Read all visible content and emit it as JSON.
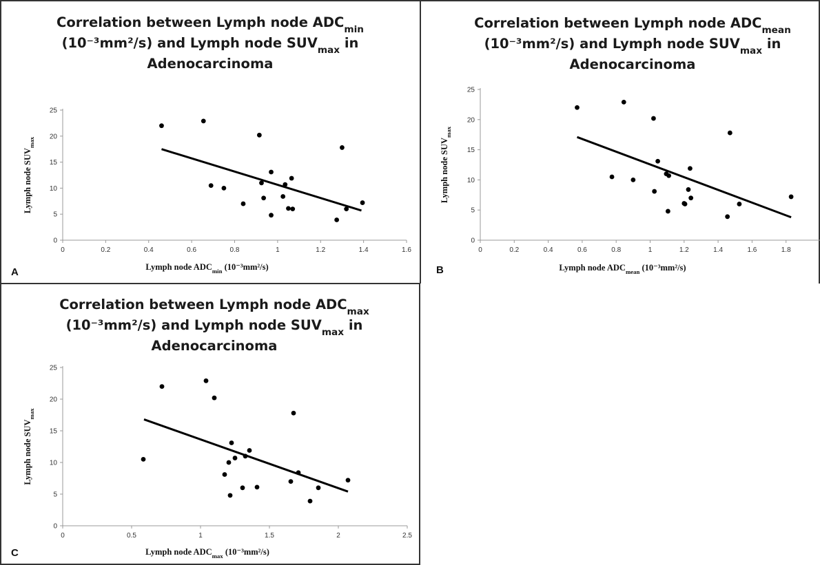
{
  "chart_data": [
    {
      "panel": "A",
      "type": "scatter",
      "title": {
        "line1": {
          "text": "Correlation between Lymph node ADC",
          "sub": "min"
        },
        "line2": {
          "pre": "(10⁻³mm²/s) and Lymph node SUV",
          "sub": "max",
          "post": " in"
        },
        "line3": "Adenocarcinoma"
      },
      "xlabel": {
        "text": "Lymph node ADC",
        "sub": "min",
        "post": " (10⁻³mm²/s)"
      },
      "ylabel": {
        "text": "Lymph node SUV",
        "sub": "max"
      },
      "xlim": [
        0,
        1.6
      ],
      "ylim": [
        0,
        25
      ],
      "xticks": [
        "0",
        "0.2",
        "0.4",
        "0.6",
        "0.8",
        "1",
        "1.2",
        "1.4",
        "1.6"
      ],
      "yticks": [
        "0",
        "5",
        "10",
        "15",
        "20",
        "25"
      ],
      "points": [
        {
          "x": 0.46,
          "y": 22.0
        },
        {
          "x": 0.655,
          "y": 22.9
        },
        {
          "x": 0.69,
          "y": 10.5
        },
        {
          "x": 0.75,
          "y": 10.0
        },
        {
          "x": 0.84,
          "y": 7.0
        },
        {
          "x": 0.915,
          "y": 20.2
        },
        {
          "x": 0.925,
          "y": 11.0
        },
        {
          "x": 0.935,
          "y": 8.1
        },
        {
          "x": 0.97,
          "y": 13.1
        },
        {
          "x": 0.97,
          "y": 4.8
        },
        {
          "x": 1.025,
          "y": 8.4
        },
        {
          "x": 1.035,
          "y": 10.7
        },
        {
          "x": 1.05,
          "y": 6.1
        },
        {
          "x": 1.065,
          "y": 11.9
        },
        {
          "x": 1.07,
          "y": 6.0
        },
        {
          "x": 1.275,
          "y": 3.9
        },
        {
          "x": 1.3,
          "y": 17.8
        },
        {
          "x": 1.32,
          "y": 6.0
        },
        {
          "x": 1.395,
          "y": 7.2
        }
      ],
      "trendline": {
        "x": [
          0.46,
          1.39
        ],
        "y": [
          17.5,
          5.7
        ]
      }
    },
    {
      "panel": "B",
      "type": "scatter",
      "title": {
        "line1": {
          "text": "Correlation between Lymph node ADC",
          "sub": "mean"
        },
        "line2": {
          "pre": "(10⁻³mm²/s) and Lymph node SUV",
          "sub": "max",
          "post": " in"
        },
        "line3": "Adenocarcinoma"
      },
      "xlabel": {
        "text": "Lymph node ADC",
        "sub": "mean",
        "post": " (10⁻³mm²/s)"
      },
      "ylabel": {
        "text": "Lymph node SUV",
        "sub": "max"
      },
      "xlim": [
        0,
        2
      ],
      "ylim": [
        0,
        25
      ],
      "xticks": [
        "0",
        "0.2",
        "0.4",
        "0.6",
        "0.8",
        "1",
        "1.2",
        "1.4",
        "1.6",
        "1.8"
      ],
      "yticks": [
        "0",
        "5",
        "10",
        "15",
        "20",
        "25"
      ],
      "points": [
        {
          "x": 0.57,
          "y": 22.0
        },
        {
          "x": 0.775,
          "y": 10.5
        },
        {
          "x": 0.845,
          "y": 22.9
        },
        {
          "x": 0.9,
          "y": 10.0
        },
        {
          "x": 1.02,
          "y": 20.2
        },
        {
          "x": 1.025,
          "y": 8.1
        },
        {
          "x": 1.045,
          "y": 13.1
        },
        {
          "x": 1.095,
          "y": 11.0
        },
        {
          "x": 1.105,
          "y": 4.8
        },
        {
          "x": 1.11,
          "y": 10.7
        },
        {
          "x": 1.2,
          "y": 6.1
        },
        {
          "x": 1.205,
          "y": 6.0
        },
        {
          "x": 1.225,
          "y": 8.4
        },
        {
          "x": 1.235,
          "y": 11.9
        },
        {
          "x": 1.24,
          "y": 7.0
        },
        {
          "x": 1.455,
          "y": 3.9
        },
        {
          "x": 1.47,
          "y": 17.8
        },
        {
          "x": 1.525,
          "y": 6.0
        },
        {
          "x": 1.83,
          "y": 7.2
        }
      ],
      "trendline": {
        "x": [
          0.57,
          1.83
        ],
        "y": [
          17.1,
          3.8
        ]
      }
    },
    {
      "panel": "C",
      "type": "scatter",
      "title": {
        "line1": {
          "text": "Correlation between Lymph node ADC",
          "sub": "max"
        },
        "line2": {
          "pre": "(10⁻³mm²/s) and Lymph node SUV",
          "sub": "max",
          "post": " in"
        },
        "line3": "Adenocarcinoma"
      },
      "xlabel": {
        "text": "Lymph node ADC",
        "sub": "max",
        "post": " (10⁻³mm²/s)"
      },
      "ylabel": {
        "text": "Lymph node SUV",
        "sub": "max"
      },
      "xlim": [
        0,
        2.5
      ],
      "ylim": [
        0,
        25
      ],
      "xticks": [
        "0",
        "0.5",
        "1",
        "1.5",
        "2",
        "2.5"
      ],
      "yticks": [
        "0",
        "5",
        "10",
        "15",
        "20",
        "25"
      ],
      "points": [
        {
          "x": 0.585,
          "y": 10.5
        },
        {
          "x": 0.72,
          "y": 22.0
        },
        {
          "x": 1.04,
          "y": 22.9
        },
        {
          "x": 1.1,
          "y": 20.2
        },
        {
          "x": 1.175,
          "y": 8.1
        },
        {
          "x": 1.205,
          "y": 10.0
        },
        {
          "x": 1.215,
          "y": 4.8
        },
        {
          "x": 1.225,
          "y": 13.1
        },
        {
          "x": 1.25,
          "y": 10.7
        },
        {
          "x": 1.305,
          "y": 6.0
        },
        {
          "x": 1.325,
          "y": 11.0
        },
        {
          "x": 1.355,
          "y": 11.9
        },
        {
          "x": 1.41,
          "y": 6.1
        },
        {
          "x": 1.655,
          "y": 7.0
        },
        {
          "x": 1.675,
          "y": 17.8
        },
        {
          "x": 1.71,
          "y": 8.4
        },
        {
          "x": 1.795,
          "y": 3.9
        },
        {
          "x": 1.855,
          "y": 6.0
        },
        {
          "x": 2.07,
          "y": 7.2
        }
      ],
      "trendline": {
        "x": [
          0.59,
          2.07
        ],
        "y": [
          16.8,
          5.4
        ]
      }
    }
  ]
}
